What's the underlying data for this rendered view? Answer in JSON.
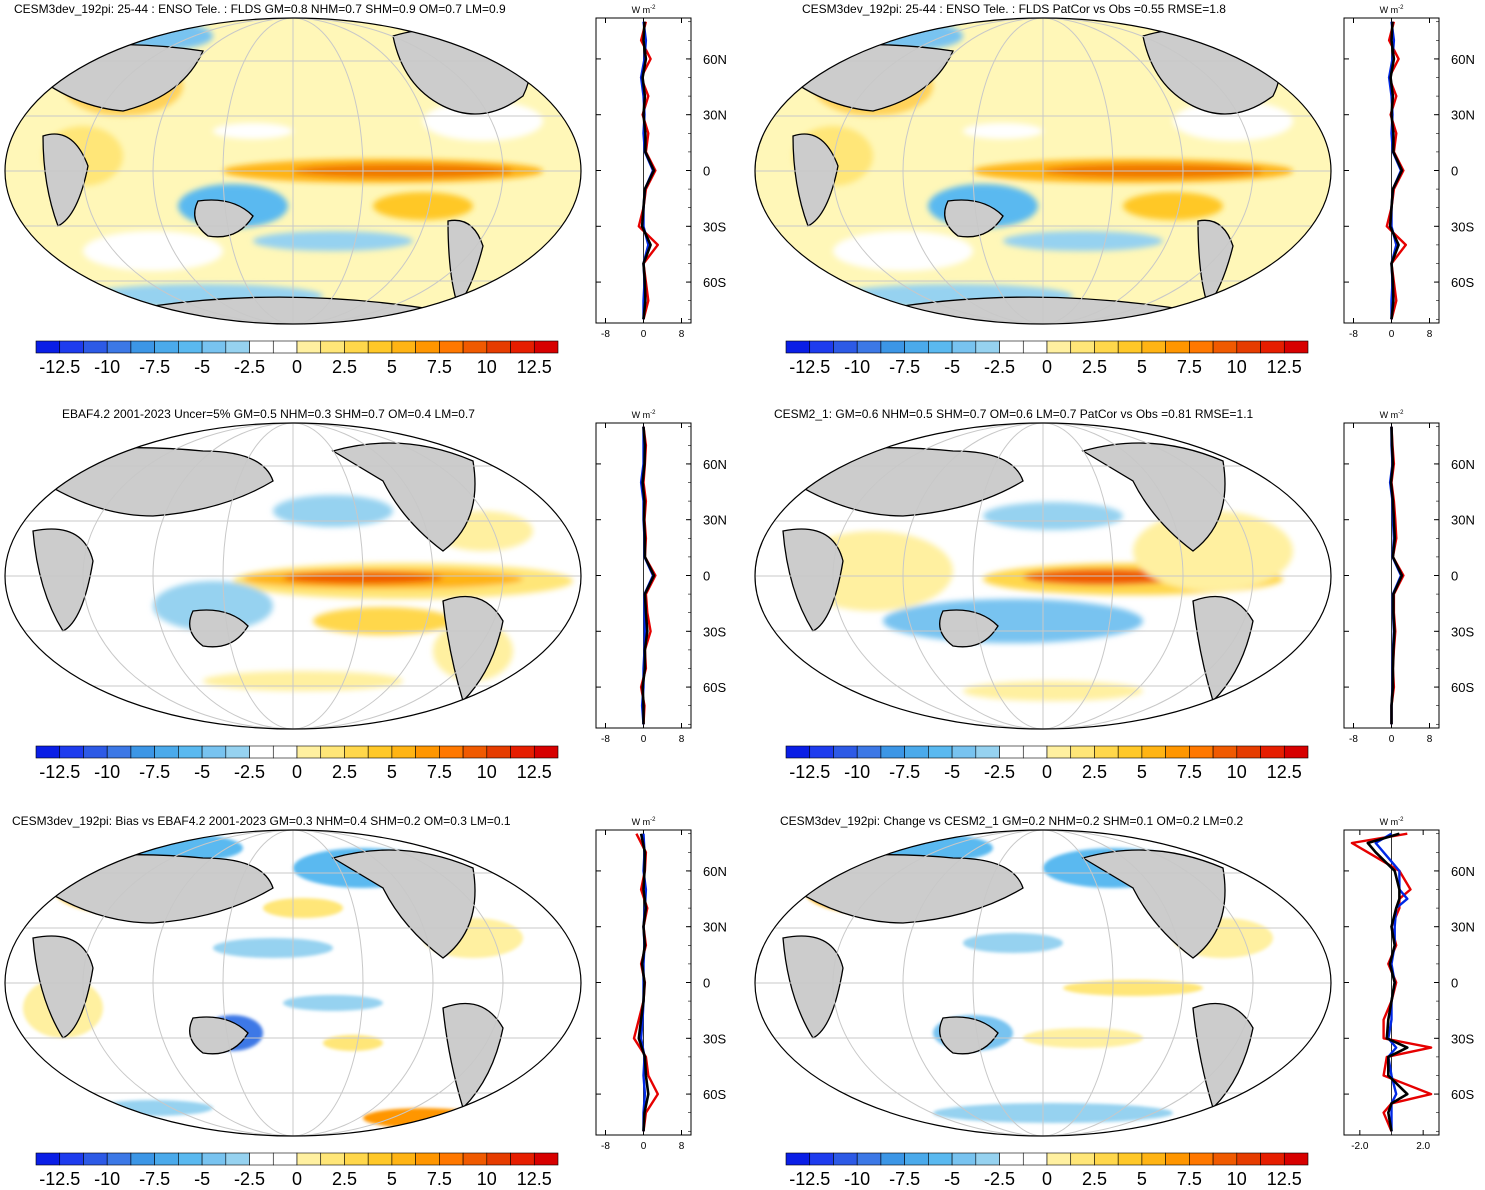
{
  "colorbar": {
    "colors": [
      "#0a1ee6",
      "#1e3cee",
      "#2d5ae6",
      "#3c78e6",
      "#3c96e6",
      "#4baaeb",
      "#5ab9f0",
      "#78c3f0",
      "#96d2f0",
      "#ffffff",
      "#ffffff",
      "#fff0a0",
      "#ffe678",
      "#ffd74b",
      "#ffc828",
      "#ffb414",
      "#ff9600",
      "#ff7800",
      "#f05a00",
      "#e63c00",
      "#e61e00",
      "#d70000"
    ],
    "labels": [
      "-12.5",
      "-10",
      "-7.5",
      "-5",
      "-2.5",
      "0",
      "2.5",
      "5",
      "7.5",
      "10",
      "12.5"
    ]
  },
  "zonal": {
    "units_prefix": "W m",
    "units_exp": "-2",
    "lat_ticks": [
      "60N",
      "30N",
      "0",
      "30S",
      "60S"
    ],
    "lat_values": [
      60,
      30,
      0,
      -30,
      -60
    ],
    "xticks_standard": [
      "-8",
      "0",
      "8"
    ],
    "xtick_values_standard": [
      -8,
      0,
      8
    ],
    "xticks_change": [
      "-2.0",
      "2.0"
    ],
    "xtick_values_change": [
      -2.0,
      2.0
    ],
    "line_colors": {
      "model": "#e60000",
      "obs": "#0028e6",
      "mean": "#000000"
    }
  },
  "panels": [
    {
      "title": "CESM3dev_192pi: 25-44 : ENSO Tele. : FLDS GM=0.8 NHM=0.7 SHM=0.9 OM=0.7 LM=0.9"
    },
    {
      "title": "CESM3dev_192pi: 25-44 : ENSO Tele. : FLDS PatCor vs Obs =0.55 RMSE=1.8"
    },
    {
      "title": "EBAF4.2 2001-2023 Uncer=5% GM=0.5 NHM=0.3 SHM=0.7 OM=0.4 LM=0.7"
    },
    {
      "title": "CESM2_1: GM=0.6 NHM=0.5 SHM=0.7 OM=0.6 LM=0.7 PatCor vs Obs =0.81 RMSE=1.1"
    },
    {
      "title": "CESM3dev_192pi: Bias vs EBAF4.2 2001-2023 GM=0.3 NHM=0.4 SHM=0.2 OM=0.3 LM=0.1"
    },
    {
      "title": "CESM3dev_192pi: Change vs CESM2_1 GM=0.2 NHM=0.2 SHM=0.1 OM=0.2 LM=0.2"
    }
  ],
  "chart_data": [
    {
      "type": "heatmap",
      "title": "CESM3dev_192pi: 25-44 : ENSO Tele. : FLDS GM=0.8 NHM=0.7 SHM=0.9 OM=0.7 LM=0.9",
      "units": "W m-2",
      "colorbar_range": [
        -13.75,
        13.75
      ],
      "zonal_mean": {
        "xlim": [
          -10,
          10
        ],
        "lat": [
          80,
          70,
          60,
          50,
          40,
          30,
          20,
          10,
          0,
          -10,
          -20,
          -30,
          -40,
          -50,
          -60,
          -70,
          -80
        ],
        "series": [
          {
            "name": "model",
            "color": "red",
            "values": [
              0.5,
              -0.5,
              1.5,
              -0.5,
              1,
              -0.2,
              1,
              0.5,
              2.5,
              0.5,
              0,
              -1,
              3,
              0,
              0.5,
              1,
              0
            ]
          },
          {
            "name": "obs",
            "color": "blue",
            "values": [
              0,
              0.5,
              0.2,
              -0.5,
              0,
              0.2,
              0,
              0.3,
              2,
              0.3,
              0,
              0,
              1,
              0,
              0.2,
              0,
              0
            ]
          },
          {
            "name": "mean",
            "color": "black",
            "values": [
              0.2,
              0,
              0.5,
              -0.2,
              0.3,
              0,
              0.4,
              0.4,
              2.2,
              0.3,
              0,
              -0.3,
              1.5,
              0,
              0.3,
              0.4,
              0
            ]
          }
        ]
      }
    },
    {
      "type": "heatmap",
      "title": "CESM3dev_192pi: 25-44 : ENSO Tele. : FLDS PatCor vs Obs =0.55 RMSE=1.8",
      "units": "W m-2",
      "colorbar_range": [
        -13.75,
        13.75
      ],
      "zonal_mean": {
        "xlim": [
          -10,
          10
        ],
        "lat": [
          80,
          70,
          60,
          50,
          40,
          30,
          20,
          10,
          0,
          -10,
          -20,
          -30,
          -40,
          -50,
          -60,
          -70,
          -80
        ],
        "series": [
          {
            "name": "model",
            "color": "red",
            "values": [
              0.5,
              -0.5,
              1.5,
              -0.5,
              1,
              -0.2,
              1,
              0.5,
              2.5,
              0.5,
              0,
              -1,
              3,
              0,
              0.5,
              1,
              0
            ]
          },
          {
            "name": "obs",
            "color": "blue",
            "values": [
              0,
              0.5,
              0.2,
              -0.5,
              0,
              0.2,
              0,
              0.3,
              2,
              0.3,
              0,
              0,
              1,
              0,
              0.2,
              0,
              0
            ]
          },
          {
            "name": "mean",
            "color": "black",
            "values": [
              0.2,
              0,
              0.5,
              -0.2,
              0.3,
              0,
              0.4,
              0.4,
              2.2,
              0.3,
              0,
              -0.3,
              1.5,
              0,
              0.3,
              0.4,
              0
            ]
          }
        ]
      }
    },
    {
      "type": "heatmap",
      "title": "EBAF4.2 2001-2023 Uncer=5% GM=0.5 NHM=0.3 SHM=0.7 OM=0.4 LM=0.7",
      "units": "W m-2",
      "colorbar_range": [
        -13.75,
        13.75
      ],
      "zonal_mean": {
        "xlim": [
          -10,
          10
        ],
        "lat": [
          80,
          70,
          60,
          50,
          40,
          30,
          20,
          10,
          0,
          -10,
          -20,
          -30,
          -40,
          -50,
          -60,
          -70,
          -80
        ],
        "series": [
          {
            "name": "model",
            "color": "red",
            "values": [
              0,
              0.5,
              0.3,
              0,
              0.5,
              0.2,
              0.5,
              0.3,
              2.5,
              0.5,
              0.8,
              1.5,
              0.3,
              0.5,
              -0.5,
              0.2,
              0
            ]
          },
          {
            "name": "obs",
            "color": "blue",
            "values": [
              0,
              0,
              0,
              -0.5,
              0,
              0,
              0.2,
              0.2,
              2,
              0.2,
              0.2,
              0.3,
              0.2,
              0,
              0,
              -0.3,
              0
            ]
          },
          {
            "name": "mean",
            "color": "black",
            "values": [
              0,
              0.3,
              0.2,
              -0.2,
              0.2,
              0.1,
              0.3,
              0.3,
              2.2,
              0.3,
              0.5,
              0.8,
              0.3,
              0.3,
              -0.2,
              0,
              0
            ]
          }
        ]
      }
    },
    {
      "type": "heatmap",
      "title": "CESM2_1: GM=0.6 NHM=0.5 SHM=0.7 OM=0.6 LM=0.7 PatCor vs Obs =0.81 RMSE=1.1",
      "units": "W m-2",
      "colorbar_range": [
        -13.75,
        13.75
      ],
      "zonal_mean": {
        "xlim": [
          -10,
          10
        ],
        "lat": [
          80,
          70,
          60,
          50,
          40,
          30,
          20,
          10,
          0,
          -10,
          -20,
          -30,
          -40,
          -50,
          -60,
          -70,
          -80
        ],
        "series": [
          {
            "name": "model",
            "color": "red",
            "values": [
              0,
              0.2,
              0.5,
              0,
              0.5,
              0.8,
              1,
              0.3,
              2.5,
              0.5,
              0.5,
              0.8,
              0.5,
              0.3,
              0.5,
              0,
              0
            ]
          },
          {
            "name": "obs",
            "color": "blue",
            "values": [
              0,
              0,
              0.2,
              -0.3,
              0.2,
              0.3,
              0.5,
              0.2,
              2,
              0.3,
              0.3,
              0.5,
              0.3,
              0.2,
              0.2,
              0,
              0
            ]
          },
          {
            "name": "mean",
            "color": "black",
            "values": [
              0,
              0.1,
              0.3,
              -0.1,
              0.3,
              0.5,
              0.7,
              0.3,
              2.2,
              0.4,
              0.4,
              0.6,
              0.4,
              0.3,
              0.3,
              0,
              0
            ]
          }
        ]
      }
    },
    {
      "type": "heatmap",
      "title": "CESM3dev_192pi: Bias vs EBAF4.2 2001-2023 GM=0.3 NHM=0.4 SHM=0.2 OM=0.3 LM=0.1",
      "units": "W m-2",
      "colorbar_range": [
        -13.75,
        13.75
      ],
      "zonal_mean": {
        "xlim": [
          -10,
          10
        ],
        "lat": [
          80,
          70,
          60,
          50,
          40,
          30,
          20,
          10,
          0,
          -10,
          -20,
          -30,
          -40,
          -50,
          -60,
          -70,
          -80
        ],
        "series": [
          {
            "name": "model",
            "color": "red",
            "values": [
              -1.5,
              0.5,
              0.3,
              -0.5,
              0.8,
              0,
              0.5,
              -0.5,
              0.3,
              0,
              -1,
              -2,
              0.5,
              1,
              3,
              0.5,
              0
            ]
          },
          {
            "name": "obs",
            "color": "blue",
            "values": [
              0,
              0.2,
              0,
              0.5,
              0.3,
              0,
              0.2,
              0,
              0,
              0,
              -0.2,
              -0.5,
              0.2,
              0,
              0.3,
              0,
              0
            ]
          },
          {
            "name": "mean",
            "color": "black",
            "values": [
              -0.5,
              0.3,
              0.2,
              0,
              0.5,
              0,
              0.3,
              -0.3,
              0.2,
              0,
              -0.5,
              -1,
              0.3,
              0.5,
              1,
              0.2,
              0
            ]
          }
        ]
      }
    },
    {
      "type": "heatmap",
      "title": "CESM3dev_192pi: Change vs CESM2_1 GM=0.2 NHM=0.2 SHM=0.1 OM=0.2 LM=0.2",
      "units": "W m-2",
      "colorbar_range": [
        -13.75,
        13.75
      ],
      "zonal_mean": {
        "xlim": [
          -3,
          3
        ],
        "lat": [
          80,
          75,
          70,
          60,
          50,
          45,
          40,
          30,
          20,
          10,
          0,
          -10,
          -20,
          -30,
          -35,
          -40,
          -50,
          -60,
          -65,
          -70,
          -80
        ],
        "series": [
          {
            "name": "model",
            "color": "red",
            "values": [
              1,
              -2.5,
              -1.5,
              0.5,
              1.2,
              0.5,
              0.5,
              0,
              0.3,
              -0.2,
              0.3,
              0,
              -0.5,
              -0.5,
              2.5,
              -0.3,
              -0.5,
              2.5,
              0,
              -0.5,
              0
            ]
          },
          {
            "name": "obs",
            "color": "blue",
            "values": [
              0,
              -1,
              -0.5,
              0.5,
              0.5,
              1,
              0.3,
              0.2,
              0.2,
              0,
              0.2,
              0,
              0,
              -0.2,
              0.3,
              -0.2,
              0,
              0.3,
              0,
              0,
              0
            ]
          },
          {
            "name": "mean",
            "color": "black",
            "values": [
              0.5,
              -1.5,
              -1,
              0.2,
              0.5,
              0.5,
              0.3,
              0,
              0.2,
              -0.1,
              0.2,
              0,
              -0.2,
              -0.3,
              1,
              -0.2,
              -0.2,
              1,
              0,
              -0.2,
              0
            ]
          }
        ]
      }
    }
  ]
}
